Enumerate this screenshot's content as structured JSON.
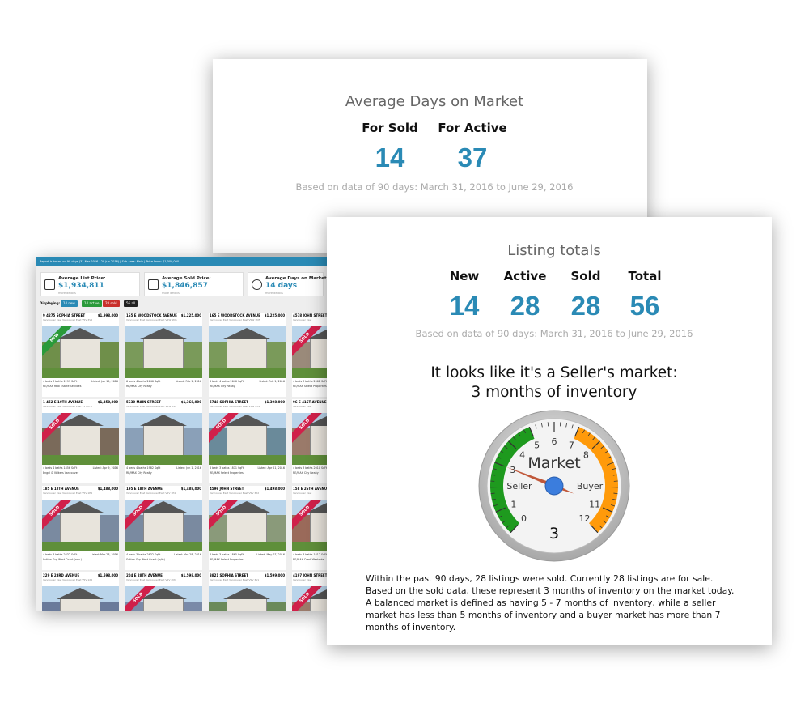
{
  "days_card": {
    "title": "Average Days on Market",
    "columns": [
      {
        "label": "For Sold",
        "value": 14
      },
      {
        "label": "For Active",
        "value": 37
      }
    ],
    "note": "Based on data of 90 days: March 31, 2016 to June 29, 2016"
  },
  "listings": {
    "bar_text": "Report is based on 90 days (31 Mar 2016 - 29 Jun 2016)  |  Sub Area: Main  |  Price From: $1,000,000",
    "stats": [
      {
        "label": "Average List Price:",
        "value": "$1,934,811",
        "more": "more details"
      },
      {
        "label": "Average Sold Price:",
        "value": "$1,846,857",
        "more": "more details"
      },
      {
        "label": "Average Days on Market:",
        "value": "14 days",
        "more": "more details"
      }
    ],
    "displaying": "Displaying:",
    "filters": [
      {
        "text": "14 new",
        "color": "#2a8ab5"
      },
      {
        "text": "14 active",
        "color": "#2a9a3a"
      },
      {
        "text": "28 sold",
        "color": "#c9302c"
      },
      {
        "text": "56 all",
        "color": "#222222"
      }
    ],
    "items": [
      {
        "address": "9 4275 SOPHIA STREET",
        "price": "$1,998,000",
        "area": "Vancouver East Vancouver East V5V 3V6",
        "details": "4 beds 3 baths 1299 SqFt",
        "listed": "Listed: Jun 15, 2016",
        "agent": "RE/MAX Real Estate Services",
        "ribbon": "NEW",
        "photo": "#6f8f4a"
      },
      {
        "address": "165 E WOODSTOCK AVENUE",
        "price": "$1,225,000",
        "area": "Vancouver East Vancouver East V5W 1M5",
        "details": "6 beds 4 baths 2640 SqFt",
        "listed": "Listed: Feb 1, 2016",
        "agent": "RE/MAX City Realty",
        "photo": "#7a9a5a"
      },
      {
        "address": "165 E WOODSTOCK AVENUE",
        "price": "$1,225,000",
        "area": "Vancouver East Vancouver East V5W 1M5",
        "details": "6 beds 4 baths 2640 SqFt",
        "listed": "Listed: Feb 1, 2016",
        "agent": "RE/MAX City Realty",
        "photo": "#7a9a5a"
      },
      {
        "address": "4578 JOHN STREET",
        "area": "Vancouver East",
        "details": "4 beds 3 baths 2002 SqFt",
        "agent": "RE/MAX Select Properties",
        "ribbon": "SOLD",
        "photo": "#9a8a7a"
      },
      {
        "address": "1 452 E 10TH AVENUE",
        "price": "$1,350,000",
        "area": "Vancouver East Vancouver East V5T 2T9",
        "details": "4 beds 4 baths 1856 SqFt",
        "listed": "Listed: Apr 9, 2016",
        "agent": "Engel & Völkers Vancouver",
        "ribbon": "SOLD",
        "photo": "#7a6a5a"
      },
      {
        "address": "5630 MAIN STREET",
        "price": "$1,368,000",
        "area": "Vancouver East Vancouver East V5W 2S4",
        "details": "4 beds 4 baths 1982 SqFt",
        "listed": "Listed: Jun 1, 2016",
        "agent": "RE/MAX City Realty",
        "photo": "#8aa0b8"
      },
      {
        "address": "5748 SOPHIA STREET",
        "price": "$1,398,000",
        "area": "Vancouver East Vancouver East V5W 2V4",
        "details": "6 beds 3 baths 1871 SqFt",
        "listed": "Listed: Apr 21, 2016",
        "agent": "RE/MAX Select Properties",
        "ribbon": "SOLD",
        "photo": "#6a8a9a"
      },
      {
        "address": "96 E 41ST AVENUE",
        "area": "Vancouver East",
        "details": "4 beds 3 baths 2010 SqFt",
        "agent": "RE/MAX City Realty",
        "ribbon": "SOLD",
        "photo": "#9a7a6a"
      },
      {
        "address": "185 E 18TH AVENUE",
        "price": "$1,488,000",
        "area": "Vancouver East Vancouver East V5V 1E4",
        "details": "4 beds 3 baths 2632 SqFt",
        "listed": "Listed: Mar 28, 2016",
        "agent": "Sutton Grp-West Coast (adv.)",
        "ribbon": "SOLD",
        "photo": "#7a8aa0"
      },
      {
        "address": "195 E 18TH AVENUE",
        "price": "$1,488,000",
        "area": "Vancouver East Vancouver East V5V 1E4",
        "details": "4 beds 3 baths 2632 SqFt",
        "listed": "Listed: Mar 28, 2016",
        "agent": "Sutton Grp-West Coast (w/in)",
        "ribbon": "SOLD",
        "photo": "#7a8aa0"
      },
      {
        "address": "4596 JOHN STREET",
        "price": "$1,498,000",
        "area": "Vancouver East Vancouver East V5V 3X2",
        "details": "6 beds 3 baths 1865 SqFt",
        "listed": "Listed: May 27, 2016",
        "agent": "RE/MAX Select Properties",
        "ribbon": "SOLD",
        "photo": "#8a9a7a"
      },
      {
        "address": "158 E 26TH AVENUE",
        "area": "Vancouver East",
        "details": "4 beds 3 baths 1612 SqFt",
        "agent": "RE/MAX Crest Westside",
        "ribbon": "SOLD",
        "photo": "#9a6a5a"
      },
      {
        "address": "229 E 23RD AVENUE",
        "price": "$1,598,000",
        "area": "Vancouver East Vancouver East V5V 1X6",
        "photo": "#6a7a9a"
      },
      {
        "address": "204 E 28TH AVENUE",
        "price": "$1,598,000",
        "area": "Vancouver East Vancouver East V5V 2M4",
        "ribbon": "SOLD",
        "photo": "#7a8aa8"
      },
      {
        "address": "3821 SOPHIA STREET",
        "price": "$1,599,000",
        "area": "Vancouver East Vancouver East V5V 3V1",
        "photo": "#6a8a5a"
      },
      {
        "address": "4197 JOHN STREET",
        "area": "Vancouver East",
        "ribbon": "SOLD",
        "photo": "#9a7a6a"
      }
    ]
  },
  "totals_card": {
    "title": "Listing totals",
    "columns": [
      {
        "label": "New",
        "value": 14
      },
      {
        "label": "Active",
        "value": 28
      },
      {
        "label": "Sold",
        "value": 28
      },
      {
        "label": "Total",
        "value": 56
      }
    ],
    "note": "Based on data of 90 days: March 31, 2016 to June 29, 2016",
    "headline": "It looks like it's a Seller's market:",
    "subheadline": "3 months of inventory",
    "gauge": {
      "title": "Market",
      "min": 0,
      "max": 12,
      "ticks": [
        0,
        1,
        3,
        4,
        5,
        6,
        7,
        8,
        11,
        12
      ],
      "value": 3,
      "bands": [
        {
          "from": 0,
          "to": 5,
          "color": "#1e9a1e"
        },
        {
          "from": 7,
          "to": 12,
          "color": "#ff9a0a"
        }
      ],
      "left_label": "Seller",
      "right_label": "Buyer"
    },
    "paragraph": "Within the past 90 days, 28 listings were sold. Currently 28 listings are for sale. Based on the sold data, these represent 3 months of inventory on the market today. A balanced market is defined as having 5 - 7 months of inventory, while a seller market has less than 5 months of inventory and a buyer market has more than 7 months of inventory."
  }
}
